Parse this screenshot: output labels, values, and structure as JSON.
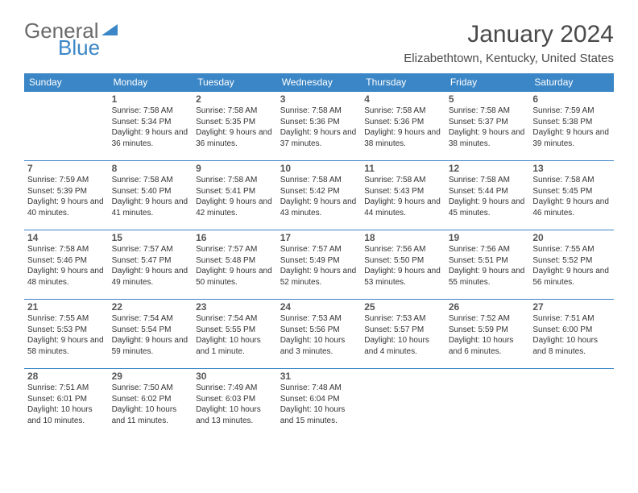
{
  "brand": {
    "part1": "General",
    "part2": "Blue"
  },
  "title": "January 2024",
  "location": "Elizabethtown, Kentucky, United States",
  "colors": {
    "header_bg": "#3b86c6",
    "header_text": "#ffffff",
    "rule": "#3b86c6",
    "text": "#333333",
    "title_text": "#4a4a4a"
  },
  "weekdays": [
    "Sunday",
    "Monday",
    "Tuesday",
    "Wednesday",
    "Thursday",
    "Friday",
    "Saturday"
  ],
  "weeks": [
    [
      null,
      {
        "n": "1",
        "sr": "Sunrise: 7:58 AM",
        "ss": "Sunset: 5:34 PM",
        "dl": "Daylight: 9 hours and 36 minutes."
      },
      {
        "n": "2",
        "sr": "Sunrise: 7:58 AM",
        "ss": "Sunset: 5:35 PM",
        "dl": "Daylight: 9 hours and 36 minutes."
      },
      {
        "n": "3",
        "sr": "Sunrise: 7:58 AM",
        "ss": "Sunset: 5:36 PM",
        "dl": "Daylight: 9 hours and 37 minutes."
      },
      {
        "n": "4",
        "sr": "Sunrise: 7:58 AM",
        "ss": "Sunset: 5:36 PM",
        "dl": "Daylight: 9 hours and 38 minutes."
      },
      {
        "n": "5",
        "sr": "Sunrise: 7:58 AM",
        "ss": "Sunset: 5:37 PM",
        "dl": "Daylight: 9 hours and 38 minutes."
      },
      {
        "n": "6",
        "sr": "Sunrise: 7:59 AM",
        "ss": "Sunset: 5:38 PM",
        "dl": "Daylight: 9 hours and 39 minutes."
      }
    ],
    [
      {
        "n": "7",
        "sr": "Sunrise: 7:59 AM",
        "ss": "Sunset: 5:39 PM",
        "dl": "Daylight: 9 hours and 40 minutes."
      },
      {
        "n": "8",
        "sr": "Sunrise: 7:58 AM",
        "ss": "Sunset: 5:40 PM",
        "dl": "Daylight: 9 hours and 41 minutes."
      },
      {
        "n": "9",
        "sr": "Sunrise: 7:58 AM",
        "ss": "Sunset: 5:41 PM",
        "dl": "Daylight: 9 hours and 42 minutes."
      },
      {
        "n": "10",
        "sr": "Sunrise: 7:58 AM",
        "ss": "Sunset: 5:42 PM",
        "dl": "Daylight: 9 hours and 43 minutes."
      },
      {
        "n": "11",
        "sr": "Sunrise: 7:58 AM",
        "ss": "Sunset: 5:43 PM",
        "dl": "Daylight: 9 hours and 44 minutes."
      },
      {
        "n": "12",
        "sr": "Sunrise: 7:58 AM",
        "ss": "Sunset: 5:44 PM",
        "dl": "Daylight: 9 hours and 45 minutes."
      },
      {
        "n": "13",
        "sr": "Sunrise: 7:58 AM",
        "ss": "Sunset: 5:45 PM",
        "dl": "Daylight: 9 hours and 46 minutes."
      }
    ],
    [
      {
        "n": "14",
        "sr": "Sunrise: 7:58 AM",
        "ss": "Sunset: 5:46 PM",
        "dl": "Daylight: 9 hours and 48 minutes."
      },
      {
        "n": "15",
        "sr": "Sunrise: 7:57 AM",
        "ss": "Sunset: 5:47 PM",
        "dl": "Daylight: 9 hours and 49 minutes."
      },
      {
        "n": "16",
        "sr": "Sunrise: 7:57 AM",
        "ss": "Sunset: 5:48 PM",
        "dl": "Daylight: 9 hours and 50 minutes."
      },
      {
        "n": "17",
        "sr": "Sunrise: 7:57 AM",
        "ss": "Sunset: 5:49 PM",
        "dl": "Daylight: 9 hours and 52 minutes."
      },
      {
        "n": "18",
        "sr": "Sunrise: 7:56 AM",
        "ss": "Sunset: 5:50 PM",
        "dl": "Daylight: 9 hours and 53 minutes."
      },
      {
        "n": "19",
        "sr": "Sunrise: 7:56 AM",
        "ss": "Sunset: 5:51 PM",
        "dl": "Daylight: 9 hours and 55 minutes."
      },
      {
        "n": "20",
        "sr": "Sunrise: 7:55 AM",
        "ss": "Sunset: 5:52 PM",
        "dl": "Daylight: 9 hours and 56 minutes."
      }
    ],
    [
      {
        "n": "21",
        "sr": "Sunrise: 7:55 AM",
        "ss": "Sunset: 5:53 PM",
        "dl": "Daylight: 9 hours and 58 minutes."
      },
      {
        "n": "22",
        "sr": "Sunrise: 7:54 AM",
        "ss": "Sunset: 5:54 PM",
        "dl": "Daylight: 9 hours and 59 minutes."
      },
      {
        "n": "23",
        "sr": "Sunrise: 7:54 AM",
        "ss": "Sunset: 5:55 PM",
        "dl": "Daylight: 10 hours and 1 minute."
      },
      {
        "n": "24",
        "sr": "Sunrise: 7:53 AM",
        "ss": "Sunset: 5:56 PM",
        "dl": "Daylight: 10 hours and 3 minutes."
      },
      {
        "n": "25",
        "sr": "Sunrise: 7:53 AM",
        "ss": "Sunset: 5:57 PM",
        "dl": "Daylight: 10 hours and 4 minutes."
      },
      {
        "n": "26",
        "sr": "Sunrise: 7:52 AM",
        "ss": "Sunset: 5:59 PM",
        "dl": "Daylight: 10 hours and 6 minutes."
      },
      {
        "n": "27",
        "sr": "Sunrise: 7:51 AM",
        "ss": "Sunset: 6:00 PM",
        "dl": "Daylight: 10 hours and 8 minutes."
      }
    ],
    [
      {
        "n": "28",
        "sr": "Sunrise: 7:51 AM",
        "ss": "Sunset: 6:01 PM",
        "dl": "Daylight: 10 hours and 10 minutes."
      },
      {
        "n": "29",
        "sr": "Sunrise: 7:50 AM",
        "ss": "Sunset: 6:02 PM",
        "dl": "Daylight: 10 hours and 11 minutes."
      },
      {
        "n": "30",
        "sr": "Sunrise: 7:49 AM",
        "ss": "Sunset: 6:03 PM",
        "dl": "Daylight: 10 hours and 13 minutes."
      },
      {
        "n": "31",
        "sr": "Sunrise: 7:48 AM",
        "ss": "Sunset: 6:04 PM",
        "dl": "Daylight: 10 hours and 15 minutes."
      },
      null,
      null,
      null
    ]
  ]
}
